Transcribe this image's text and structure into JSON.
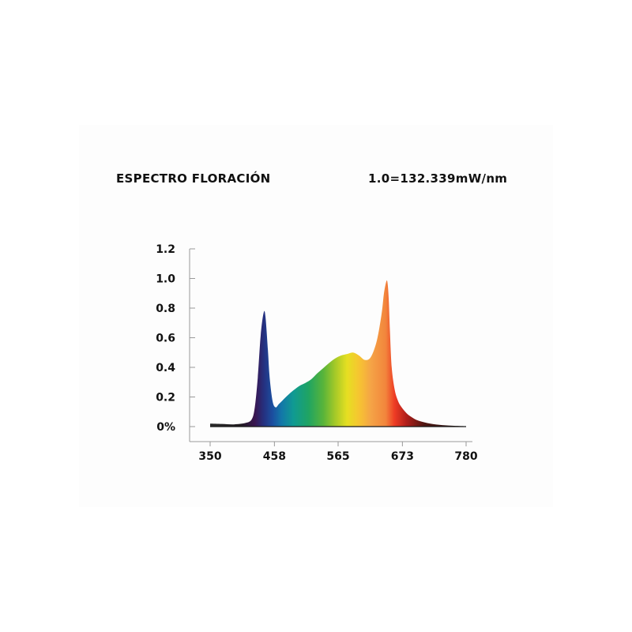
{
  "chart_data": {
    "type": "area",
    "title": "ESPECTRO FLORACIÓN",
    "subtitle": "1.0=132.339mW/nm",
    "xlabel": "",
    "ylabel": "",
    "xlim": [
      350,
      780
    ],
    "ylim": [
      0,
      1.2
    ],
    "x_ticks": [
      "350",
      "458",
      "565",
      "673",
      "780"
    ],
    "y_ticks": [
      "1.2",
      "1.0",
      "0.8",
      "0.6",
      "0.4",
      "0.2",
      "0%"
    ],
    "grid": false,
    "series": [
      {
        "x": [
          350,
          370,
          390,
          410,
          420,
          425,
          430,
          435,
          440,
          443,
          447,
          450,
          455,
          460,
          465,
          470,
          480,
          490,
          500,
          510,
          520,
          530,
          540,
          550,
          560,
          570,
          580,
          590,
          600,
          610,
          620,
          630,
          638,
          642,
          646,
          648,
          650,
          652,
          655,
          660,
          665,
          670,
          680,
          690,
          700,
          720,
          740,
          760,
          780
        ],
        "values": [
          0.02,
          0.018,
          0.015,
          0.025,
          0.05,
          0.13,
          0.33,
          0.62,
          0.77,
          0.74,
          0.52,
          0.33,
          0.17,
          0.13,
          0.15,
          0.17,
          0.21,
          0.245,
          0.275,
          0.295,
          0.32,
          0.36,
          0.395,
          0.43,
          0.46,
          0.48,
          0.49,
          0.5,
          0.48,
          0.45,
          0.47,
          0.58,
          0.76,
          0.9,
          0.98,
          0.97,
          0.86,
          0.65,
          0.4,
          0.25,
          0.18,
          0.14,
          0.09,
          0.06,
          0.04,
          0.02,
          0.01,
          0.005,
          0.002
        ]
      }
    ]
  }
}
